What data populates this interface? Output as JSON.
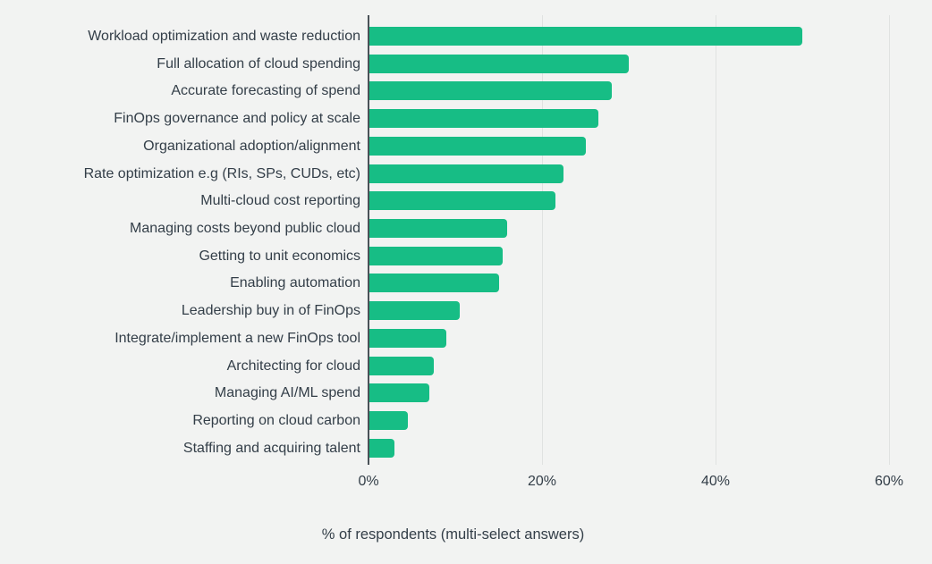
{
  "chart_data": {
    "type": "bar",
    "orientation": "horizontal",
    "title": "",
    "xlabel": "% of respondents (multi-select answers)",
    "categories": [
      "Workload optimization and waste reduction",
      "Full allocation of cloud spending",
      "Accurate forecasting of spend",
      "FinOps governance and policy at scale",
      "Organizational adoption/alignment",
      "Rate optimization e.g (RIs, SPs, CUDs, etc)",
      "Multi-cloud cost reporting",
      "Managing costs beyond public cloud",
      "Getting to unit economics",
      "Enabling automation",
      "Leadership buy in of FinOps",
      "Integrate/implement a new FinOps tool",
      "Architecting for cloud",
      "Managing AI/ML spend",
      "Reporting on cloud carbon",
      "Staffing and acquiring talent"
    ],
    "values": [
      50,
      30,
      28,
      26.5,
      25,
      22.5,
      21.5,
      16,
      15.5,
      15,
      10.5,
      9,
      7.5,
      7,
      4.5,
      3
    ],
    "x_ticks": [
      {
        "value": 0,
        "label": "0%"
      },
      {
        "value": 20,
        "label": "20%"
      },
      {
        "value": 40,
        "label": "40%"
      },
      {
        "value": 60,
        "label": "60%"
      }
    ],
    "xlim": [
      0,
      64
    ],
    "grid": true,
    "legend_position": "none",
    "colors": {
      "bar": "#17bd85",
      "background": "#f2f3f2",
      "text": "#333e48",
      "gridline": "#e0e2e1",
      "axis": "#4a5157"
    }
  }
}
